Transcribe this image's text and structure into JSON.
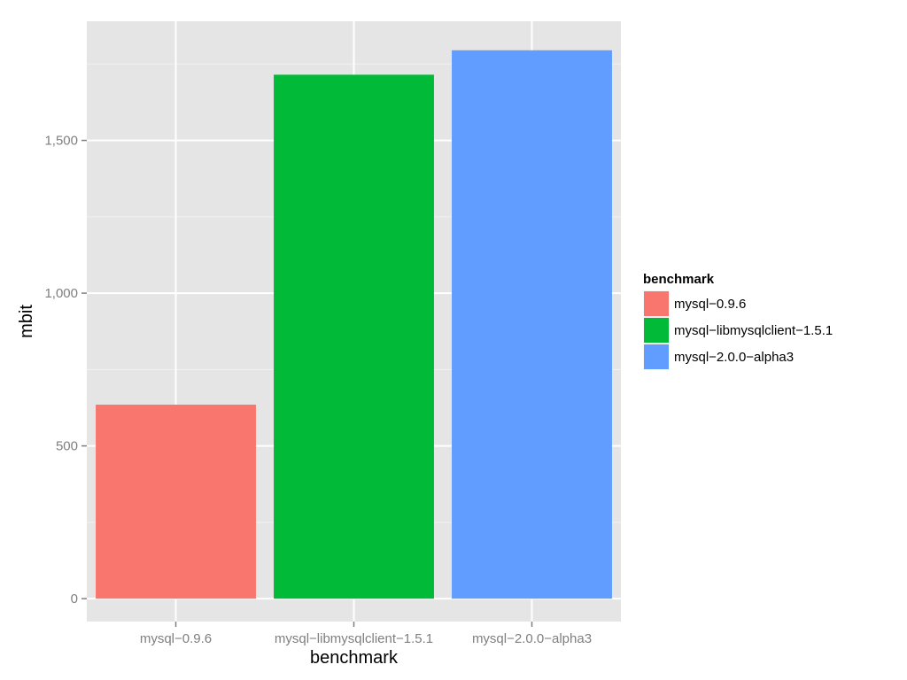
{
  "chart_data": {
    "type": "bar",
    "categories": [
      "mysql−0.9.6",
      "mysql−libmysqlclient−1.5.1",
      "mysql−2.0.0−alpha3"
    ],
    "values": [
      635,
      1715,
      1795
    ],
    "colors": [
      "#F8766D",
      "#00BA38",
      "#619CFF"
    ],
    "xlabel": "benchmark",
    "ylabel": "mbit",
    "ylim": [
      -75,
      1890
    ],
    "yticks": [
      0,
      500,
      1000,
      1500
    ],
    "ytick_labels": [
      "0",
      "500",
      "1,000",
      "1,500"
    ],
    "grid": true,
    "legend": {
      "title": "benchmark",
      "placement": "right",
      "entries": [
        "mysql−0.9.6",
        "mysql−libmysqlclient−1.5.1",
        "mysql−2.0.0−alpha3"
      ]
    },
    "background": "#E5E5E5"
  }
}
